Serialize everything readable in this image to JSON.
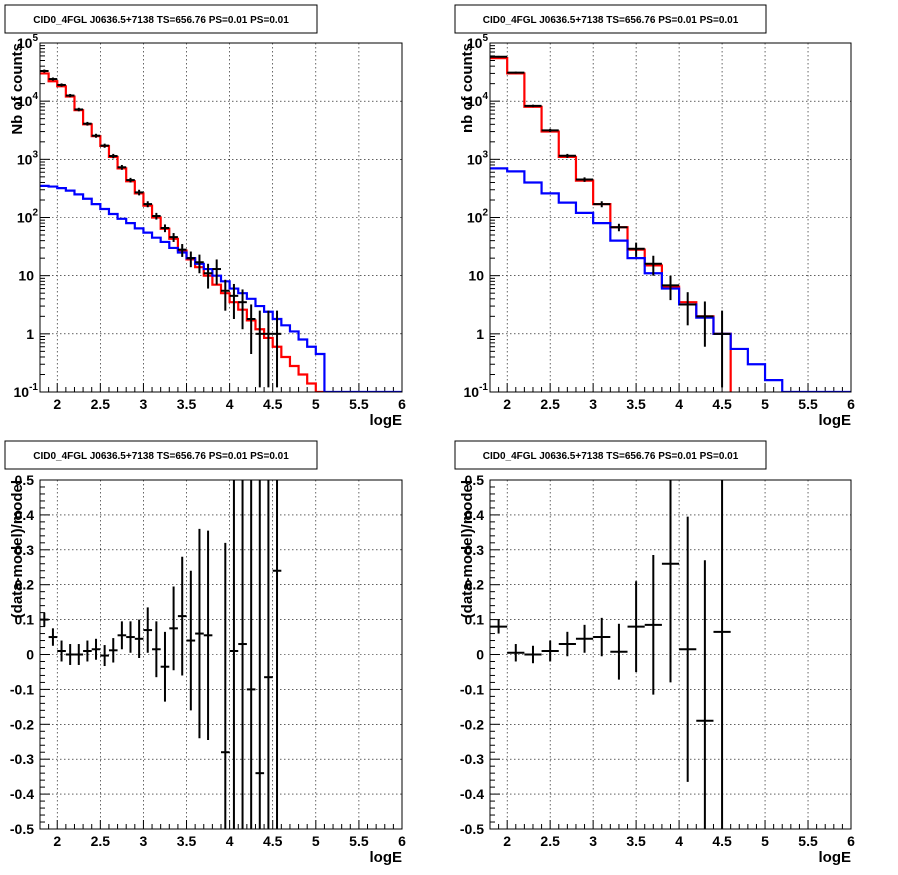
{
  "chart_data": [
    {
      "type": "line",
      "title": "CID0_4FGL J0636.5+7138 TS=656.76 PS=0.01 PS=0.01",
      "xlabel": "logE",
      "ylabel": "Nb of counts",
      "xlim": [
        1.8,
        6.0
      ],
      "ylim": [
        0.1,
        100000
      ],
      "yscale": "log",
      "grid": true,
      "x_ticks": [
        "2",
        "2.5",
        "3",
        "3.5",
        "4",
        "4.5",
        "5",
        "5.5",
        "6"
      ],
      "y_ticks": [
        "10^-1",
        "1",
        "10",
        "10^2",
        "10^3",
        "10^4",
        "10^5"
      ],
      "series": [
        {
          "kind": "step",
          "color": "#ff0000",
          "x_edges": [
            1.8,
            1.9,
            2.0,
            2.1,
            2.2,
            2.3,
            2.4,
            2.5,
            2.6,
            2.7,
            2.8,
            2.9,
            3.0,
            3.1,
            3.2,
            3.3,
            3.4,
            3.5,
            3.6,
            3.7,
            3.8,
            3.9,
            4.0,
            4.1,
            4.2,
            4.3,
            4.4,
            4.5,
            4.6,
            4.7,
            4.8,
            4.9,
            5.0,
            5.1
          ],
          "values": [
            30000,
            22000,
            18000,
            12000,
            7000,
            4000,
            2500,
            1700,
            1100,
            700,
            420,
            260,
            160,
            100,
            64,
            43,
            27,
            19,
            14,
            10,
            7,
            5,
            3.5,
            2.6,
            1.7,
            1.2,
            0.85,
            0.6,
            0.4,
            0.28,
            0.2,
            0.14,
            0.1
          ]
        },
        {
          "kind": "step",
          "color": "#0000ff",
          "x_edges": [
            1.8,
            1.9,
            2.0,
            2.1,
            2.2,
            2.3,
            2.4,
            2.5,
            2.6,
            2.7,
            2.8,
            2.9,
            3.0,
            3.1,
            3.2,
            3.3,
            3.4,
            3.5,
            3.6,
            3.7,
            3.8,
            3.9,
            4.0,
            4.1,
            4.2,
            4.3,
            4.4,
            4.5,
            4.6,
            4.7,
            4.8,
            4.9,
            5.0,
            5.1,
            5.2,
            5.3,
            5.4,
            5.5,
            5.6,
            5.7,
            5.8,
            5.9,
            6.0
          ],
          "values": [
            350,
            340,
            320,
            290,
            250,
            210,
            170,
            140,
            115,
            95,
            80,
            65,
            55,
            45,
            38,
            30,
            25,
            20,
            16,
            13,
            10,
            8,
            6,
            5,
            4,
            3,
            2.4,
            1.8,
            1.4,
            1.1,
            0.8,
            0.6,
            0.45,
            0.1,
            0.1,
            0.1,
            0.1,
            0.1,
            0.1,
            0.1,
            0.1,
            0.1
          ]
        },
        {
          "kind": "errorbars",
          "color": "#000000",
          "x": [
            1.85,
            1.95,
            2.05,
            2.15,
            2.25,
            2.35,
            2.45,
            2.55,
            2.65,
            2.75,
            2.85,
            2.95,
            3.05,
            3.15,
            3.25,
            3.35,
            3.45,
            3.55,
            3.65,
            3.75,
            3.85,
            3.95,
            4.05,
            4.15,
            4.25,
            4.35,
            4.45,
            4.55
          ],
          "xerr": 0.05,
          "y": [
            33000,
            24000,
            19000,
            12500,
            7200,
            4100,
            2550,
            1720,
            1140,
            730,
            440,
            270,
            170,
            106,
            66,
            46,
            28,
            20,
            17,
            11,
            13,
            5.5,
            4.5,
            3.5,
            1.8,
            1.0,
            1.0,
            1.0
          ],
          "ylo": [
            31000,
            22500,
            17800,
            11700,
            6700,
            3800,
            2350,
            1580,
            1040,
            660,
            400,
            240,
            150,
            92,
            56,
            38,
            21,
            14,
            11,
            6,
            7,
            2.5,
            1.8,
            1.2,
            0.45,
            0.12,
            0.12,
            0.12
          ],
          "yhi": [
            35000,
            25500,
            20200,
            13300,
            7700,
            4400,
            2750,
            1860,
            1240,
            800,
            480,
            300,
            190,
            120,
            76,
            54,
            35,
            26,
            23,
            16,
            19,
            8.5,
            7.2,
            5.8,
            3.2,
            2.5,
            2.5,
            2.5
          ]
        }
      ]
    },
    {
      "type": "line",
      "title": "CID0_4FGL J0636.5+7138 TS=656.76 PS=0.01 PS=0.01",
      "xlabel": "logE",
      "ylabel": "nb of counts",
      "xlim": [
        1.8,
        6.0
      ],
      "ylim": [
        0.1,
        100000
      ],
      "yscale": "log",
      "grid": true,
      "x_ticks": [
        "2",
        "2.5",
        "3",
        "3.5",
        "4",
        "4.5",
        "5",
        "5.5",
        "6"
      ],
      "y_ticks": [
        "10^-1",
        "1",
        "10",
        "10^2",
        "10^3",
        "10^4",
        "10^5"
      ],
      "series": [
        {
          "kind": "step",
          "color": "#ff0000",
          "x_edges": [
            1.8,
            2.0,
            2.2,
            2.4,
            2.6,
            2.8,
            3.0,
            3.2,
            3.4,
            3.6,
            3.8,
            4.0,
            4.2,
            4.4,
            4.6
          ],
          "values": [
            55000,
            30000,
            8000,
            3000,
            1100,
            430,
            170,
            68,
            28,
            15,
            6.5,
            3.5,
            2.0,
            1.0
          ],
          "stop_bottom": true
        },
        {
          "kind": "step",
          "color": "#0000ff",
          "x_edges": [
            1.8,
            2.0,
            2.2,
            2.4,
            2.6,
            2.8,
            3.0,
            3.2,
            3.4,
            3.6,
            3.8,
            4.0,
            4.2,
            4.4,
            4.6,
            4.8,
            5.0,
            5.2,
            5.4,
            5.6,
            5.8,
            6.0
          ],
          "values": [
            700,
            620,
            400,
            260,
            180,
            120,
            80,
            40,
            20,
            11,
            6.0,
            3.2,
            1.9,
            1.0,
            0.55,
            0.3,
            0.16,
            0.1,
            0.1,
            0.1,
            0.1
          ]
        },
        {
          "kind": "errorbars",
          "color": "#000000",
          "x": [
            1.9,
            2.1,
            2.3,
            2.5,
            2.7,
            2.9,
            3.1,
            3.3,
            3.5,
            3.7,
            3.9,
            4.1,
            4.3,
            4.5
          ],
          "xerr": 0.1,
          "y": [
            58000,
            31000,
            8300,
            3150,
            1150,
            450,
            170,
            68,
            29,
            16,
            6.8,
            3.2,
            2.0,
            1.0
          ],
          "ylo": [
            56000,
            29800,
            7900,
            2950,
            1060,
            410,
            150,
            58,
            21,
            10,
            3.8,
            1.4,
            0.6,
            0.12
          ],
          "yhi": [
            60000,
            32200,
            8700,
            3350,
            1240,
            490,
            190,
            78,
            37,
            22,
            10,
            5.2,
            3.6,
            2.5
          ]
        }
      ]
    },
    {
      "type": "scatter",
      "title": "CID0_4FGL J0636.5+7138 TS=656.76 PS=0.01 PS=0.01",
      "xlabel": "logE",
      "ylabel": "(data-model)/model",
      "xlim": [
        1.8,
        6.0
      ],
      "ylim": [
        -0.5,
        0.5
      ],
      "grid": true,
      "x_ticks": [
        "2",
        "2.5",
        "3",
        "3.5",
        "4",
        "4.5",
        "5",
        "5.5",
        "6"
      ],
      "y_ticks": [
        "-0.5",
        "-0.4",
        "-0.3",
        "-0.2",
        "-0.1",
        "0",
        "0.1",
        "0.2",
        "0.3",
        "0.4",
        "0.5"
      ],
      "xerr": 0.05,
      "points": [
        {
          "x": 1.85,
          "y": 0.1,
          "err": 0.02
        },
        {
          "x": 1.95,
          "y": 0.05,
          "err": 0.025
        },
        {
          "x": 2.05,
          "y": 0.01,
          "err": 0.03
        },
        {
          "x": 2.15,
          "y": 0.0,
          "err": 0.03
        },
        {
          "x": 2.25,
          "y": 0.0,
          "err": 0.03
        },
        {
          "x": 2.35,
          "y": 0.01,
          "err": 0.03
        },
        {
          "x": 2.45,
          "y": 0.015,
          "err": 0.03
        },
        {
          "x": 2.55,
          "y": -0.003,
          "err": 0.03
        },
        {
          "x": 2.65,
          "y": 0.012,
          "err": 0.035
        },
        {
          "x": 2.75,
          "y": 0.055,
          "err": 0.04
        },
        {
          "x": 2.85,
          "y": 0.05,
          "err": 0.045
        },
        {
          "x": 2.95,
          "y": 0.045,
          "err": 0.055
        },
        {
          "x": 3.05,
          "y": 0.07,
          "err": 0.065
        },
        {
          "x": 3.15,
          "y": 0.015,
          "err": 0.08
        },
        {
          "x": 3.25,
          "y": -0.035,
          "err": 0.1
        },
        {
          "x": 3.35,
          "y": 0.075,
          "err": 0.12
        },
        {
          "x": 3.45,
          "y": 0.11,
          "err": 0.17
        },
        {
          "x": 3.55,
          "y": 0.04,
          "err": 0.2
        },
        {
          "x": 3.65,
          "y": 0.06,
          "err": 0.3
        },
        {
          "x": 3.75,
          "y": 0.055,
          "err": 0.3
        },
        {
          "x": 3.95,
          "y": -0.28,
          "err": 0.6
        },
        {
          "x": 4.05,
          "y": 0.01,
          "err": 0.8
        },
        {
          "x": 4.15,
          "y": 0.03,
          "err": 0.8
        },
        {
          "x": 4.25,
          "y": -0.1,
          "err": 0.9
        },
        {
          "x": 4.35,
          "y": -0.34,
          "err": 1.0
        },
        {
          "x": 4.45,
          "y": -0.065,
          "err": 1.0
        },
        {
          "x": 4.55,
          "y": 0.24,
          "err": 1.0
        }
      ]
    },
    {
      "type": "scatter",
      "title": "CID0_4FGL J0636.5+7138 TS=656.76 PS=0.01 PS=0.01",
      "xlabel": "logE",
      "ylabel": "(data-model)/model",
      "xlim": [
        1.8,
        6.0
      ],
      "ylim": [
        -0.5,
        0.5
      ],
      "grid": true,
      "x_ticks": [
        "2",
        "2.5",
        "3",
        "3.5",
        "4",
        "4.5",
        "5",
        "5.5",
        "6"
      ],
      "y_ticks": [
        "-0.5",
        "-0.4",
        "-0.3",
        "-0.2",
        "-0.1",
        "0",
        "0.1",
        "0.2",
        "0.3",
        "0.4",
        "0.5"
      ],
      "xerr": 0.1,
      "points": [
        {
          "x": 1.9,
          "y": 0.08,
          "err": 0.02
        },
        {
          "x": 2.1,
          "y": 0.005,
          "err": 0.025
        },
        {
          "x": 2.3,
          "y": 0.0,
          "err": 0.025
        },
        {
          "x": 2.5,
          "y": 0.01,
          "err": 0.03
        },
        {
          "x": 2.7,
          "y": 0.03,
          "err": 0.035
        },
        {
          "x": 2.9,
          "y": 0.045,
          "err": 0.04
        },
        {
          "x": 3.1,
          "y": 0.05,
          "err": 0.055
        },
        {
          "x": 3.3,
          "y": 0.008,
          "err": 0.08
        },
        {
          "x": 3.5,
          "y": 0.08,
          "err": 0.13
        },
        {
          "x": 3.7,
          "y": 0.085,
          "err": 0.2
        },
        {
          "x": 3.9,
          "y": 0.26,
          "err": 0.34
        },
        {
          "x": 4.1,
          "y": 0.015,
          "err": 0.38
        },
        {
          "x": 4.3,
          "y": -0.19,
          "err": 0.46
        },
        {
          "x": 4.5,
          "y": 0.065,
          "err": 0.6
        }
      ]
    }
  ]
}
